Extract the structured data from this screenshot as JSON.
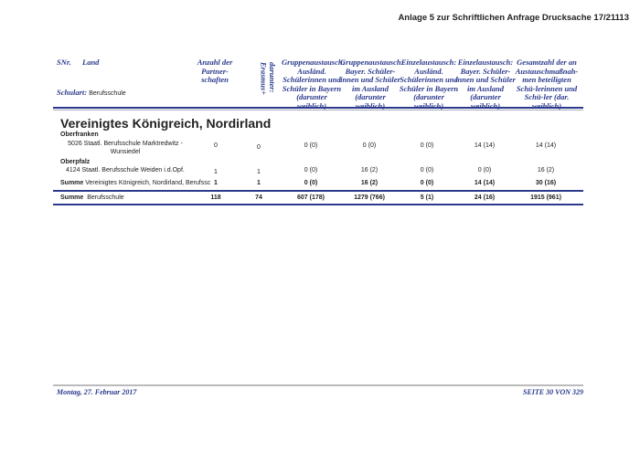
{
  "page_header": "Anlage 5 zur Schriftlichen Anfrage Drucksache 17/21113",
  "table_header": {
    "snr": "SNr.",
    "land": "Land",
    "schulart_label": "Schulart:",
    "schulart_value": "Berufsschule",
    "columns": [
      "Anzahl der Partner-schaften",
      "darunter: Erasmus+",
      "Gruppenaustausch: Ausländ. Schülerinnen und Schüler in Bayern (darunter weiblich)",
      "Gruppenaustausch: Bayer. Schüler-innen und Schüler im Ausland (darunter weiblich)",
      "Einzelaustausch: Ausländ. Schülerinnen und Schüler in Bayern (darunter weiblich)",
      "Einzelaustausch: Bayer. Schüler-innen und Schüler im Ausland (darunter weiblich)",
      "Gesamtzahl der an Austauschmaßnah-men beteiligten Schü-lerinnen und Schü-ler (dar. weiblich)"
    ]
  },
  "country": "Vereinigtes Königreich, Nordirland",
  "regions": [
    {
      "name": "Oberfranken",
      "rows": [
        {
          "school": "5026 Staatl. Berufsschule Marktredwitz - Wunsiedel",
          "values": [
            "0",
            "0",
            "0 (0)",
            "0 (0)",
            "0 (0)",
            "14 (14)",
            "14 (14)"
          ]
        }
      ]
    },
    {
      "name": "Oberpfalz",
      "rows": [
        {
          "school": "4124 Staatl. Berufsschule Weiden i.d.Opf.",
          "values": [
            "1",
            "1",
            "0 (0)",
            "16 (2)",
            "0 (0)",
            "0 (0)",
            "16 (2)"
          ]
        }
      ]
    }
  ],
  "sum_country": {
    "label": "Summe",
    "text": "Vereinigtes Königreich, Nordirland, Berufssc",
    "values": [
      "1",
      "1",
      "0 (0)",
      "16 (2)",
      "0 (0)",
      "14 (14)",
      "30 (16)"
    ]
  },
  "sum_total": {
    "label": "Summe",
    "text": "Berufsschule",
    "values": [
      "118",
      "74",
      "607 (178)",
      "1279 (766)",
      "5 (1)",
      "24 (16)",
      "1915 (961)"
    ]
  },
  "footer": {
    "date": "Montag, 27. Februar 2017",
    "page": "SEITE 30 VON 329"
  }
}
